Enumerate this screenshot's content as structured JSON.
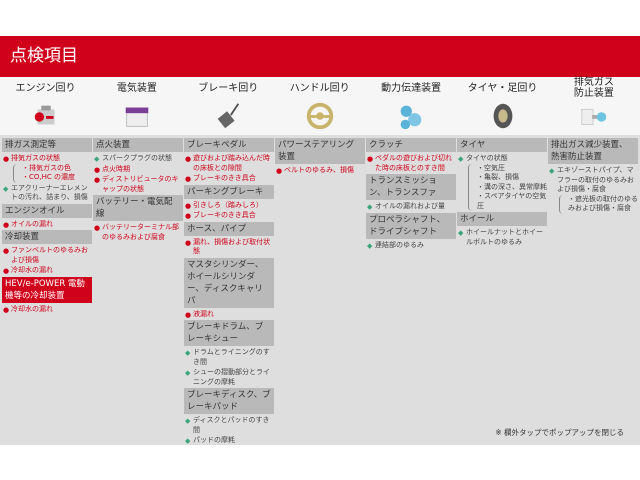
{
  "title": "点検項目",
  "categories": [
    {
      "label": "エンジン回り",
      "icon": "engine-icon"
    },
    {
      "label": "電気装置",
      "icon": "battery-icon"
    },
    {
      "label": "ブレーキ回り",
      "icon": "brake-pedal-icon"
    },
    {
      "label": "ハンドル回り",
      "icon": "steering-wheel-icon"
    },
    {
      "label": "動力伝達装置",
      "icon": "gears-icon"
    },
    {
      "label": "タイヤ・足回り",
      "icon": "tire-icon"
    },
    {
      "label": "排気ガス\n防止装置",
      "icon": "exhaust-icon"
    }
  ],
  "columns": [
    {
      "sections": [
        {
          "header": "排ガス測定等",
          "items": [
            {
              "type": "red",
              "text": "排気ガスの状態",
              "sub": [
                "・排気ガスの色",
                "・CO,HC の濃度"
              ]
            },
            {
              "type": "green",
              "text": "エアクリーナーエレメントの汚れ、詰まり、損傷"
            }
          ]
        },
        {
          "header": "エンジンオイル",
          "items": [
            {
              "type": "red",
              "text": "オイルの漏れ"
            }
          ]
        },
        {
          "header": "冷却装置",
          "items": [
            {
              "type": "red",
              "text": "ファンベルトのゆるみおよび損傷"
            },
            {
              "type": "red",
              "text": "冷却水の漏れ"
            }
          ]
        },
        {
          "header": "HEV/e-POWER 電動機等の冷却装置",
          "headerStyle": "red",
          "items": [
            {
              "type": "red",
              "text": "冷却水の漏れ"
            }
          ]
        }
      ]
    },
    {
      "sections": [
        {
          "header": "点火装置",
          "items": [
            {
              "type": "green",
              "text": "スパークプラグの状態"
            },
            {
              "type": "red",
              "text": "点火時期"
            },
            {
              "type": "red",
              "text": "ディストリビュータのキャップの状態"
            }
          ]
        },
        {
          "header": "バッテリー・電気配線",
          "items": [
            {
              "type": "red",
              "text": "バッテリーターミナル部のゆるみおよび腐食"
            }
          ]
        }
      ]
    },
    {
      "sections": [
        {
          "header": "ブレーキペダル",
          "items": [
            {
              "type": "red",
              "text": "遊びおよび踏み込んだ時の床板との隙間"
            },
            {
              "type": "red",
              "text": "ブレーキのきき具合"
            }
          ]
        },
        {
          "header": "パーキングブレーキ",
          "items": [
            {
              "type": "red",
              "text": "引きしろ（踏みしろ）"
            },
            {
              "type": "red",
              "text": "ブレーキのきき具合"
            }
          ]
        },
        {
          "header": "ホース、パイプ",
          "items": [
            {
              "type": "red",
              "text": "漏れ、損傷および取付状態"
            }
          ]
        },
        {
          "header": "マスタシリンダー、ホイールシリンダー、ディスクキャリパ",
          "items": [
            {
              "type": "red",
              "text": "液漏れ"
            }
          ]
        },
        {
          "header": "ブレーキドラム、ブレーキシュー",
          "items": [
            {
              "type": "green",
              "text": "ドラムとライニングのすき間"
            },
            {
              "type": "green",
              "text": "シューの摺動部分とライニングの摩耗"
            }
          ]
        },
        {
          "header": "ブレーキディスク、ブレーキパッド",
          "items": [
            {
              "type": "green",
              "text": "ディスクとパッドのすき間"
            },
            {
              "type": "green",
              "text": "パッドの摩耗"
            }
          ]
        }
      ]
    },
    {
      "sections": [
        {
          "header": "パワーステアリング装置",
          "items": [
            {
              "type": "red",
              "text": "ベルトのゆるみ、損傷"
            }
          ]
        }
      ]
    },
    {
      "sections": [
        {
          "header": "クラッチ",
          "items": [
            {
              "type": "red",
              "text": "ペダルの遊びおよび切れた時の床板とのすき間"
            }
          ]
        },
        {
          "header": "トランスミッション、トランスファ",
          "items": [
            {
              "type": "green",
              "text": "オイルの漏れおよび量"
            }
          ]
        },
        {
          "header": "プロペラシャフト、ドライブシャフト",
          "items": [
            {
              "type": "green",
              "text": "連結部のゆるみ"
            }
          ]
        }
      ]
    },
    {
      "sections": [
        {
          "header": "タイヤ",
          "items": [
            {
              "type": "green",
              "text": "タイヤの状態",
              "sub": [
                "・空気圧",
                "・亀裂、損傷",
                "・溝の深さ、異常摩耗",
                "・スペアタイヤの空気圧"
              ]
            }
          ]
        },
        {
          "header": "ホイール",
          "items": [
            {
              "type": "green",
              "text": "ホイールナットとホイールボルトのゆるみ"
            }
          ]
        }
      ]
    },
    {
      "sections": [
        {
          "header": "排出ガス減少装置、熱害防止装置",
          "items": [
            {
              "type": "green",
              "text": "エキゾーストパイプ、マフラーの取付のゆるみおよび損傷・腐食",
              "sub": [
                "・遮光板の取付のゆるみおよび損傷・腐食"
              ]
            }
          ]
        }
      ]
    }
  ],
  "note": "※ 欄外タップでポップアップを閉じる",
  "colors": {
    "accent": "#d0021b",
    "bullet_red": "#d0021b",
    "bullet_green": "#3aa57a",
    "panel": "#dedede",
    "header": "#b9b9b9"
  }
}
